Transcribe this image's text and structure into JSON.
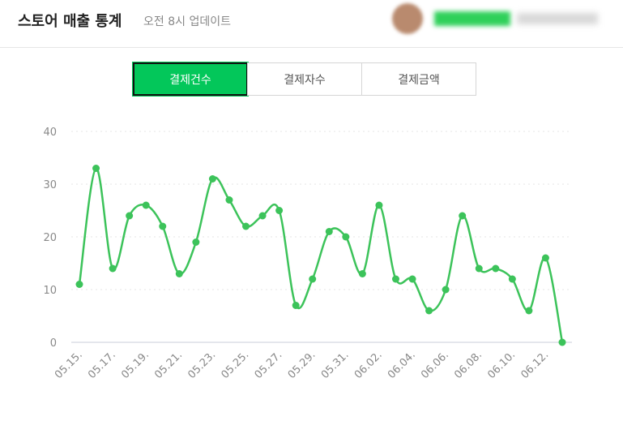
{
  "header": {
    "title": "스토어 매출 통계",
    "subtitle": "오전 8시 업데이트"
  },
  "tabs": [
    "결제건수",
    "결제자수",
    "결제금액"
  ],
  "chart_data": {
    "type": "line",
    "categories": [
      "05.15.",
      null,
      "05.17.",
      null,
      "05.19.",
      null,
      "05.21.",
      null,
      "05.23.",
      null,
      "05.25.",
      null,
      "05.27.",
      null,
      "05.29.",
      null,
      "05.31.",
      null,
      "06.02.",
      null,
      "06.04.",
      null,
      "06.06.",
      null,
      "06.08.",
      null,
      "06.10.",
      null,
      "06.12.",
      null
    ],
    "values": [
      11,
      33,
      14,
      24,
      26,
      22,
      13,
      19,
      31,
      27,
      22,
      24,
      25,
      7,
      12,
      21,
      20,
      13,
      26,
      12,
      12,
      6,
      10,
      24,
      14,
      14,
      12,
      6,
      16,
      0
    ],
    "color": "#3cc35a",
    "ylim": [
      0,
      40
    ],
    "yticks": [
      0,
      10,
      20,
      30,
      40
    ],
    "grid": true
  }
}
